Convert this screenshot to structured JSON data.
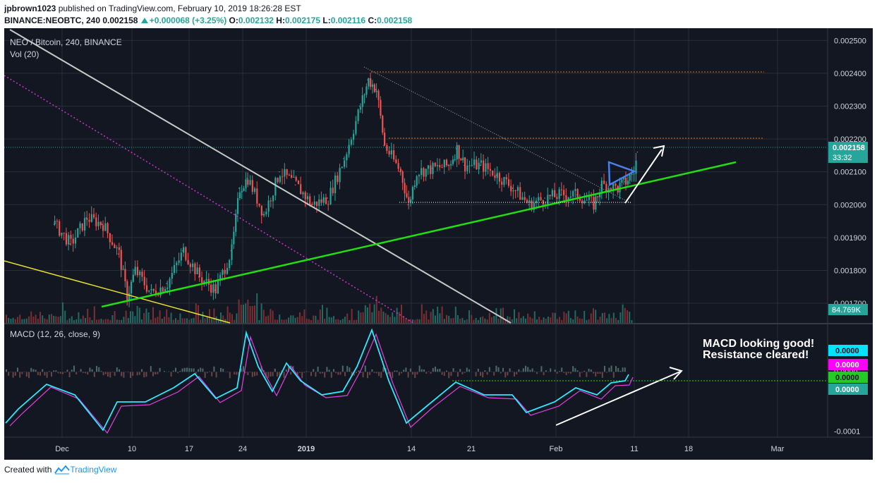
{
  "header": {
    "author": "jpbrown1023",
    "published": "published on TradingView.com, February 10, 2019 18:26:28 EST",
    "symbol": "BINANCE:NEOBTC, 240",
    "last": "0.002158",
    "change": "+0.000068 (+3.25%)",
    "o_label": "O:",
    "o": "0.002132",
    "h_label": "H:",
    "h": "0.002175",
    "l_label": "L:",
    "l": "0.002116",
    "c_label": "C:",
    "c": "0.002158"
  },
  "colors": {
    "background": "#131722",
    "up": "#26a69a",
    "down": "#ef5350",
    "green_trend": "#22dd11",
    "yellow_trend": "#e8e030",
    "grey_trend": "#c8c8c8",
    "magenta": "#cc33cc",
    "orange_level": "#d9731f",
    "macd_line": "#2ee8ff",
    "signal_line": "#e040e0",
    "blue_pennant": "#4a7fe8"
  },
  "chart_data": [
    {
      "type": "line",
      "title": "NEO / Bitcoin, 240, BINANCE",
      "subtitle": "Vol (20)",
      "x_ticks": [
        "Dec",
        "10",
        "17",
        "24",
        "2019",
        "14",
        "21",
        "Feb",
        "11",
        "18",
        "Mar"
      ],
      "y_ticks": [
        "0.002500",
        "0.002400",
        "0.002300",
        "0.002200",
        "0.002100",
        "0.002000",
        "0.001900",
        "0.001800",
        "0.001700"
      ],
      "ylim": [
        0.00164,
        0.00252
      ],
      "last_price_label": "0.002158",
      "countdown_label": "33:32",
      "volume_label": "84.769K",
      "series": [
        {
          "x": [
            "Nov 30",
            "Dec 2",
            "Dec 4",
            "Dec 6",
            "Dec 8",
            "Dec 9",
            "Dec 10",
            "Dec 12",
            "Dec 14",
            "Dec 16",
            "Dec 18",
            "Dec 20",
            "Dec 22",
            "Dec 23",
            "Dec 24",
            "Dec 26",
            "Dec 28",
            "Dec 30",
            "Jan 1",
            "Jan 3",
            "Jan 5",
            "Jan 7",
            "Jan 8",
            "Jan 9",
            "Jan 10",
            "Jan 12",
            "Jan 13",
            "Jan 14",
            "Jan 16",
            "Jan 18",
            "Jan 19",
            "Jan 20",
            "Jan 22",
            "Jan 24",
            "Jan 26",
            "Jan 28",
            "Jan 30",
            "Feb 1",
            "Feb 3",
            "Feb 5",
            "Feb 6",
            "Feb 8",
            "Feb 9",
            "Feb 10",
            "Feb 10b"
          ],
          "values": [
            0.00194,
            0.00188,
            0.00196,
            0.00194,
            0.00185,
            0.00172,
            0.0018,
            0.00173,
            0.00176,
            0.00186,
            0.00178,
            0.00174,
            0.00186,
            0.00205,
            0.00208,
            0.00197,
            0.0021,
            0.00206,
            0.002,
            0.00202,
            0.00214,
            0.0023,
            0.00238,
            0.00235,
            0.00218,
            0.0021,
            0.002,
            0.0021,
            0.00211,
            0.00212,
            0.00217,
            0.00212,
            0.00212,
            0.00209,
            0.00205,
            0.002,
            0.00202,
            0.00203,
            0.00203,
            0.002,
            0.00206,
            0.00205,
            0.00207,
            0.0021,
            0.00216
          ]
        }
      ]
    },
    {
      "type": "line",
      "title": "MACD (12, 26, close, 9)",
      "y_ticks": [
        "0.0000",
        "-0.0001"
      ],
      "ylim": [
        -0.00011,
        8e-05
      ],
      "value_labels": [
        "0.0000",
        "0.0000",
        "0.0000",
        "0.0000"
      ],
      "annotation": [
        "MACD looking good!",
        "Resistance cleared!"
      ]
    }
  ],
  "footer": {
    "created_with": "Created with",
    "brand": "TradingView"
  }
}
